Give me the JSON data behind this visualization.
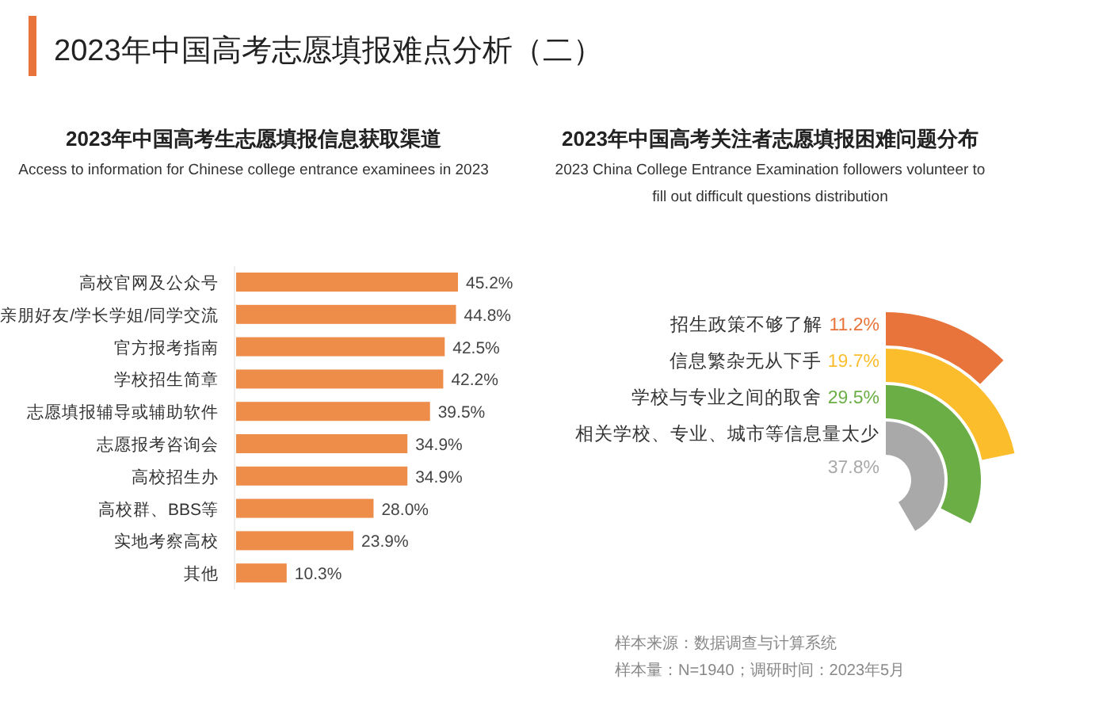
{
  "chart_data": [
    {
      "type": "bar",
      "orientation": "horizontal",
      "title": "2023年中国高考生志愿填报信息获取渠道",
      "subtitle": "Access to information for Chinese college entrance examinees in 2023",
      "categories": [
        "高校官网及公众号",
        "亲朋好友/学长学姐/同学交流",
        "官方报考指南",
        "学校招生简章",
        "志愿填报辅导或辅助软件",
        "志愿报考咨询会",
        "高校招生办",
        "高校群、BBS等",
        "实地考察高校",
        "其他"
      ],
      "values": [
        45.2,
        44.8,
        42.5,
        42.2,
        39.5,
        34.9,
        34.9,
        28.0,
        23.9,
        10.3
      ],
      "value_labels": [
        "45.2%",
        "44.8%",
        "42.5%",
        "42.2%",
        "39.5%",
        "34.9%",
        "34.9%",
        "28.0%",
        "23.9%",
        "10.3%"
      ],
      "color": "#ee8c4a",
      "annotations": [
        "2023年中国高考志愿填报难点分析（二）"
      ]
    },
    {
      "type": "other",
      "title": "2023年中国高考关注者志愿填报困难问题分布",
      "subtitle": "2023 China College Entrance Examination followers volunteer to fill out difficult questions distribution",
      "categories": [
        "招生政策不够了解",
        "信息繁杂无从下手",
        "学校与专业之间的取舍",
        "相关学校、专业、城市等信息量太少"
      ],
      "values": [
        11.2,
        19.7,
        29.5,
        37.8
      ],
      "value_labels": [
        "11.2%",
        "19.7%",
        "29.5%",
        "37.8%"
      ],
      "colors": [
        "#e8743b",
        "#fbbd2c",
        "#6aae45",
        "#a9a9a9"
      ],
      "annotations": [
        "样本来源：数据调查与计算系统",
        "样本量：N=1940；调研时间：2023年5月"
      ]
    }
  ]
}
